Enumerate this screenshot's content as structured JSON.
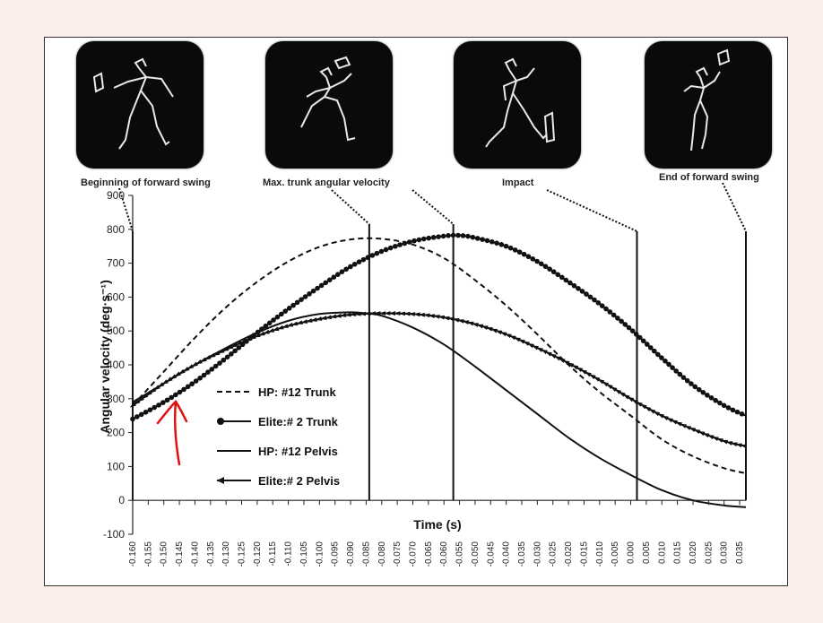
{
  "stages": [
    {
      "label": "Beginning of forward swing",
      "x": -0.16
    },
    {
      "label": "Max. trunk angular velocity",
      "x": -0.084
    },
    {
      "label": "Impact",
      "x": 0.002
    },
    {
      "label": "End of forward swing",
      "x": 0.037
    }
  ],
  "chart_data": {
    "type": "line",
    "ylabel": "Angular velocity (deg·s⁻¹)",
    "xlabel": "Time (s)",
    "xlim": [
      -0.16,
      0.037
    ],
    "ylim": [
      -100,
      900
    ],
    "yticks": [
      -100,
      0,
      100,
      200,
      300,
      400,
      500,
      600,
      700,
      800,
      900
    ],
    "xticks": [
      -0.16,
      -0.155,
      -0.15,
      -0.145,
      -0.14,
      -0.135,
      -0.13,
      -0.125,
      -0.12,
      -0.115,
      -0.11,
      -0.105,
      -0.1,
      -0.095,
      -0.09,
      -0.085,
      -0.08,
      -0.075,
      -0.07,
      -0.065,
      -0.06,
      -0.055,
      -0.05,
      -0.045,
      -0.04,
      -0.035,
      -0.03,
      -0.025,
      -0.02,
      -0.015,
      -0.01,
      -0.005,
      0.0,
      0.005,
      0.01,
      0.015,
      0.02,
      0.025,
      0.03,
      0.035
    ],
    "xtick_labels": [
      "-0.160",
      "-0.155",
      "-0.150",
      "-0.145",
      "-0.140",
      "-0.135",
      "-0.130",
      "-0.125",
      "-0.120",
      "-0.115",
      "-0.110",
      "-0.105",
      "-0.100",
      "-0.095",
      "-0.090",
      "-0.085",
      "-0.080",
      "-0.075",
      "-0.070",
      "-0.065",
      "-0.060",
      "-0.055",
      "-0.050",
      "-0.045",
      "-0.040",
      "-0.035",
      "-0.030",
      "-0.025",
      "-0.020",
      "-0.015",
      "-0.010",
      "-0.005",
      "0.000",
      "0.005",
      "0.010",
      "0.015",
      "0.020",
      "0.025",
      "0.030",
      "0.035"
    ],
    "vertical_lines": [
      -0.16,
      -0.084,
      -0.057,
      0.002,
      0.037
    ],
    "series": [
      {
        "name": "HP:  #12 Trunk",
        "style": "dashed",
        "x": [
          -0.16,
          -0.15,
          -0.14,
          -0.13,
          -0.12,
          -0.11,
          -0.1,
          -0.09,
          -0.08,
          -0.07,
          -0.06,
          -0.05,
          -0.04,
          -0.03,
          -0.02,
          -0.01,
          0.0,
          0.01,
          0.02,
          0.03,
          0.037
        ],
        "y": [
          280,
          380,
          480,
          570,
          645,
          705,
          748,
          770,
          772,
          755,
          715,
          650,
          575,
          490,
          400,
          320,
          250,
          180,
          130,
          95,
          80
        ]
      },
      {
        "name": "Elite:# 2 Trunk",
        "style": "dotted-circle",
        "x": [
          -0.16,
          -0.15,
          -0.14,
          -0.13,
          -0.12,
          -0.11,
          -0.1,
          -0.09,
          -0.08,
          -0.07,
          -0.06,
          -0.055,
          -0.05,
          -0.04,
          -0.03,
          -0.02,
          -0.01,
          0.0,
          0.01,
          0.02,
          0.03,
          0.037
        ],
        "y": [
          240,
          290,
          350,
          420,
          495,
          565,
          630,
          690,
          735,
          765,
          780,
          782,
          775,
          750,
          705,
          645,
          580,
          505,
          420,
          340,
          280,
          250
        ]
      },
      {
        "name": "HP:  #12 Pelvis",
        "style": "solid",
        "x": [
          -0.16,
          -0.15,
          -0.14,
          -0.13,
          -0.12,
          -0.11,
          -0.1,
          -0.09,
          -0.085,
          -0.08,
          -0.07,
          -0.06,
          -0.05,
          -0.04,
          -0.03,
          -0.02,
          -0.01,
          0.0,
          0.01,
          0.02,
          0.03,
          0.037
        ],
        "y": [
          290,
          345,
          400,
          450,
          495,
          530,
          550,
          555,
          552,
          545,
          510,
          460,
          395,
          325,
          255,
          185,
          125,
          75,
          30,
          0,
          -15,
          -20
        ]
      },
      {
        "name": "Elite:# 2 Pelvis",
        "style": "triangle",
        "x": [
          -0.16,
          -0.15,
          -0.14,
          -0.13,
          -0.12,
          -0.11,
          -0.1,
          -0.09,
          -0.08,
          -0.07,
          -0.06,
          -0.05,
          -0.04,
          -0.03,
          -0.02,
          -0.01,
          0.0,
          0.01,
          0.02,
          0.03,
          0.037
        ],
        "y": [
          280,
          345,
          400,
          445,
          485,
          515,
          535,
          548,
          552,
          550,
          540,
          520,
          490,
          450,
          405,
          355,
          300,
          250,
          210,
          175,
          160
        ]
      }
    ]
  }
}
